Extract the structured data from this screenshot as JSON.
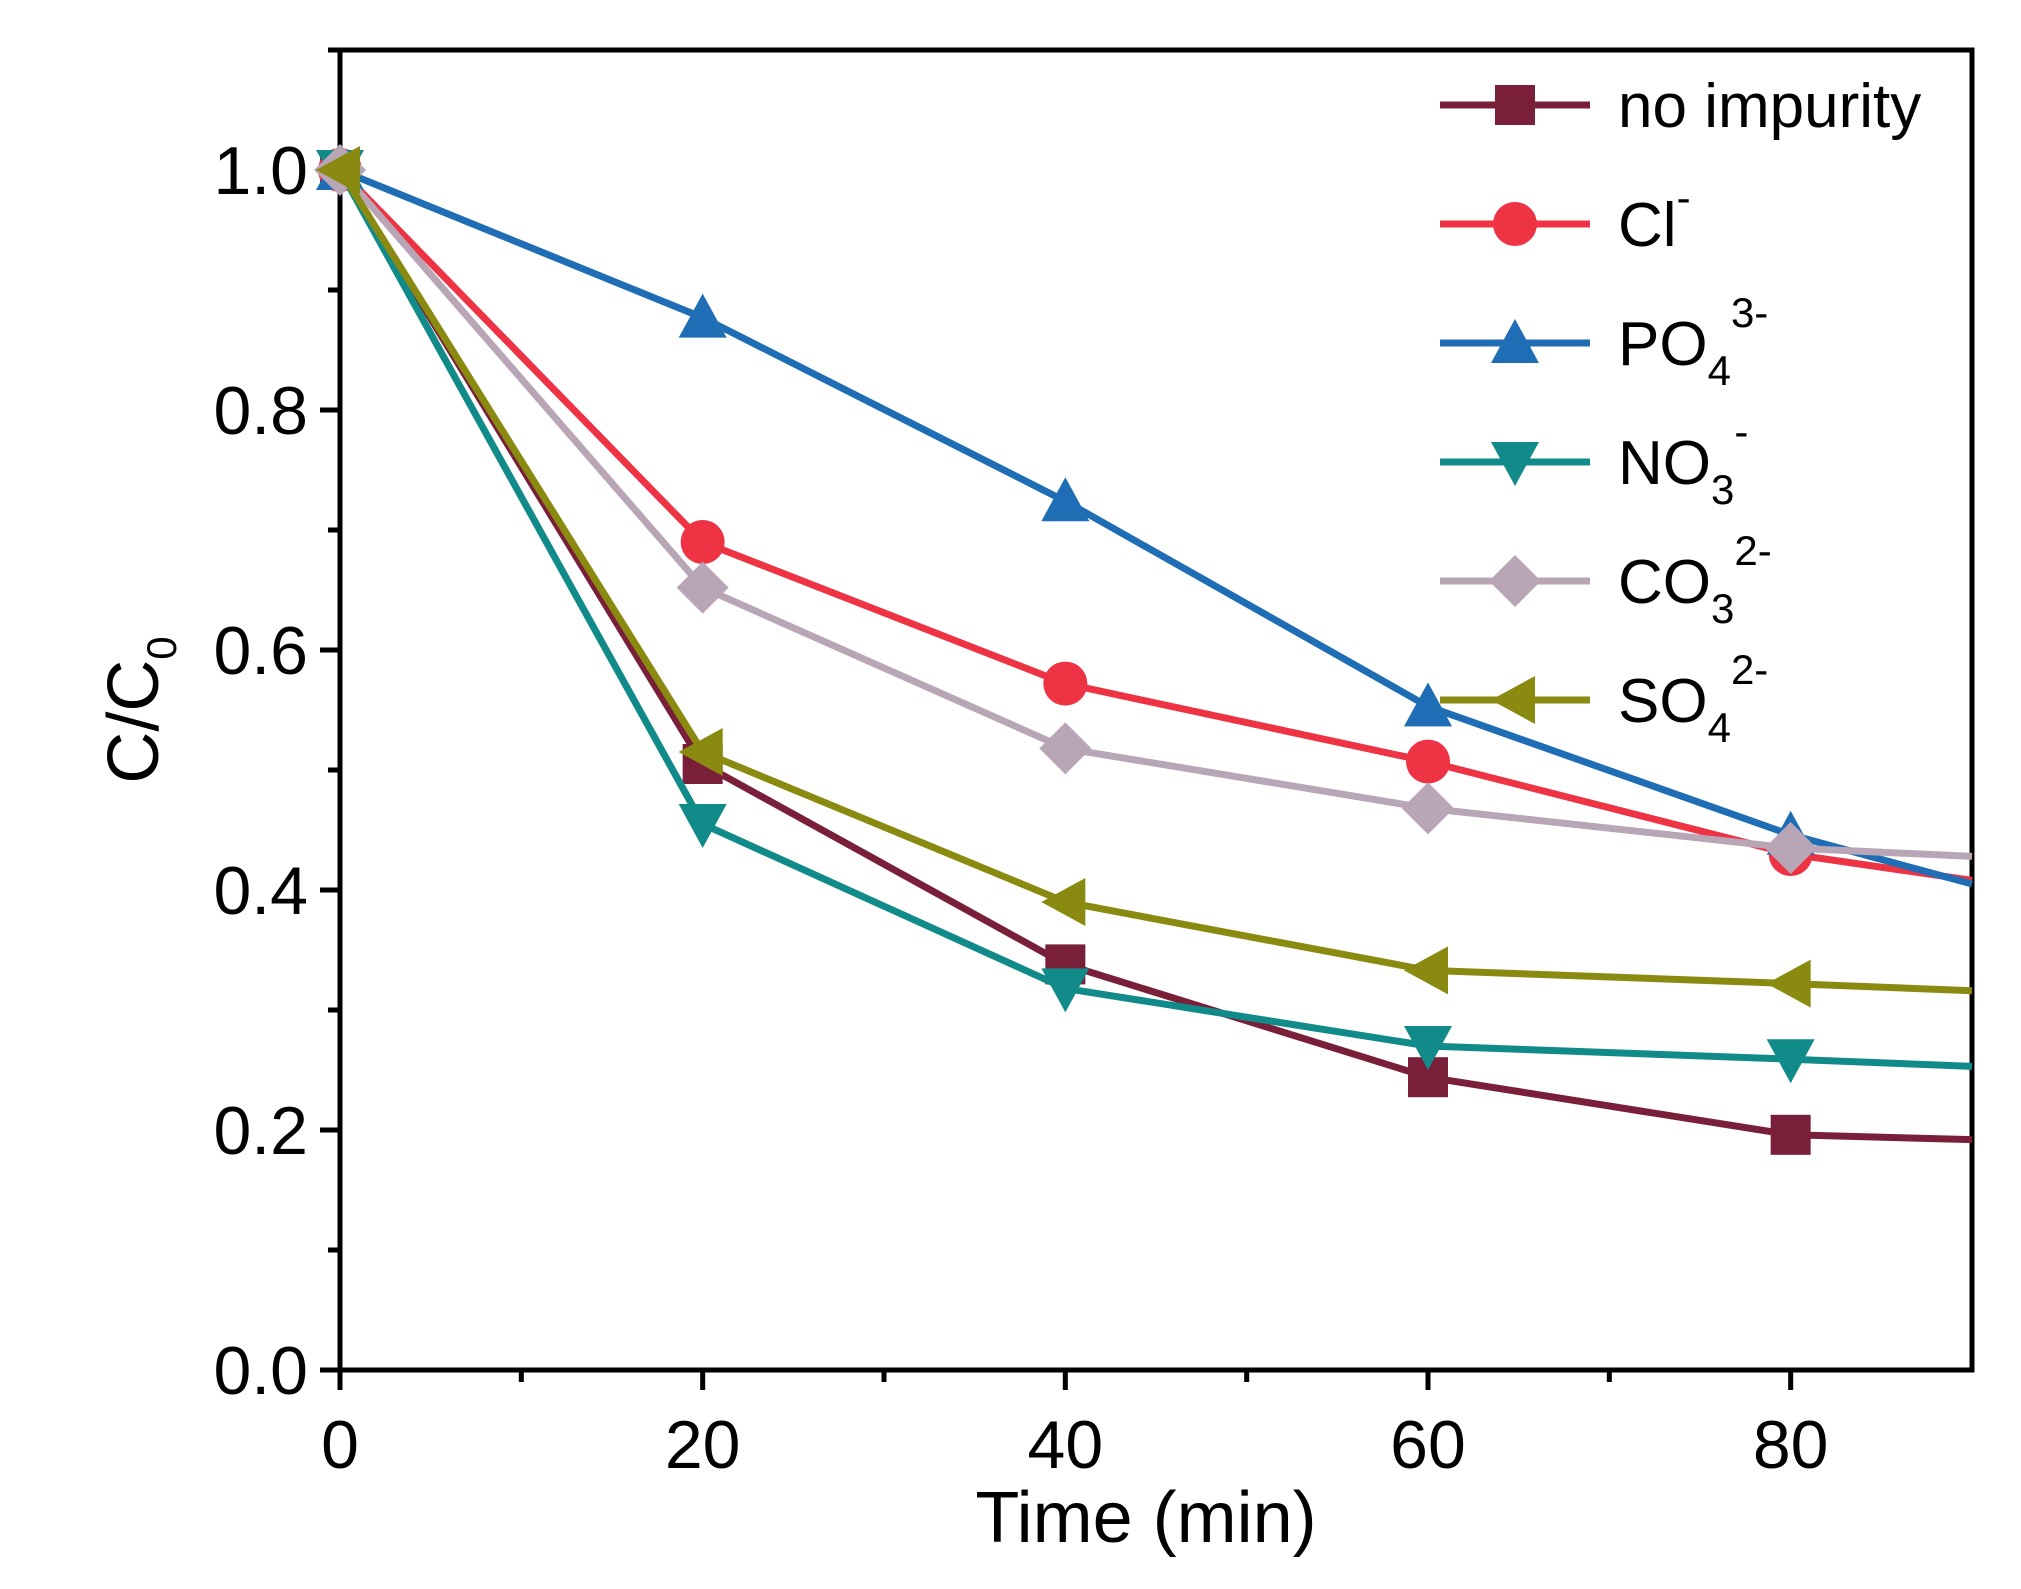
{
  "chart_data": {
    "type": "line",
    "title": "",
    "xlabel": "Time (min)",
    "ylabel_main": "C/C",
    "ylabel_sub": "0",
    "xlim": [
      0,
      90
    ],
    "ylim": [
      0,
      1.1
    ],
    "xticks": [
      0,
      20,
      40,
      60,
      80
    ],
    "yticks": [
      0.0,
      0.2,
      0.4,
      0.6,
      0.8,
      1.0
    ],
    "xtick_labels": [
      "0",
      "20",
      "40",
      "60",
      "80"
    ],
    "ytick_labels": [
      "0.0",
      "0.2",
      "0.4",
      "0.6",
      "0.8",
      "1.0"
    ],
    "grid": false,
    "legend_position": "top-right",
    "series": [
      {
        "name": "no impurity",
        "label_main": "no impurity",
        "label_sub": "",
        "label_sup": "",
        "color": "#7a1f3a",
        "marker": "square",
        "x": [
          0,
          20,
          40,
          60,
          80,
          90
        ],
        "y": [
          1.0,
          0.505,
          0.338,
          0.244,
          0.196,
          0.192
        ]
      },
      {
        "name": "Cl-",
        "label_main": "Cl",
        "label_sub": "",
        "label_sup": "-",
        "color": "#ee3344",
        "marker": "circle",
        "x": [
          0,
          20,
          40,
          60,
          80,
          90
        ],
        "y": [
          1.0,
          0.69,
          0.572,
          0.507,
          0.43,
          0.408
        ]
      },
      {
        "name": "PO4 3-",
        "label_main": "PO",
        "label_sub": "4",
        "label_sup": "3-",
        "color": "#1f6eb5",
        "marker": "triangle-up",
        "x": [
          0,
          20,
          40,
          60,
          80,
          90
        ],
        "y": [
          1.0,
          0.877,
          0.724,
          0.553,
          0.446,
          0.405
        ]
      },
      {
        "name": "NO3 -",
        "label_main": "NO",
        "label_sub": "3",
        "label_sup": "-",
        "color": "#118a8a",
        "marker": "triangle-down",
        "x": [
          0,
          20,
          40,
          60,
          80,
          90
        ],
        "y": [
          1.0,
          0.455,
          0.318,
          0.27,
          0.259,
          0.253
        ]
      },
      {
        "name": "CO3 2-",
        "label_main": "CO",
        "label_sub": "3",
        "label_sup": "2-",
        "color": "#b8a6b6",
        "marker": "diamond",
        "x": [
          0,
          20,
          40,
          60,
          80,
          90
        ],
        "y": [
          1.0,
          0.652,
          0.518,
          0.468,
          0.435,
          0.428
        ]
      },
      {
        "name": "SO4 2-",
        "label_main": "SO",
        "label_sub": "4",
        "label_sup": "2-",
        "color": "#8a8a10",
        "marker": "triangle-left",
        "x": [
          0,
          20,
          40,
          60,
          80,
          90
        ],
        "y": [
          1.0,
          0.515,
          0.39,
          0.333,
          0.322,
          0.316
        ]
      }
    ]
  }
}
